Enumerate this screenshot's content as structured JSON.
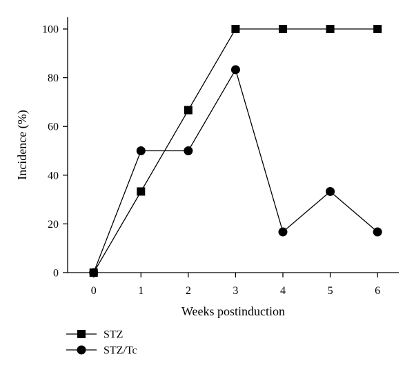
{
  "chart_data": {
    "type": "line",
    "title": "",
    "xlabel": "Weeks postinduction",
    "ylabel": "Incidence (%)",
    "x": [
      0,
      1,
      2,
      3,
      4,
      5,
      6
    ],
    "xlim": [
      -0.55,
      6.45
    ],
    "ylim": [
      0,
      100
    ],
    "x_ticks": [
      "0",
      "1",
      "2",
      "3",
      "4",
      "5",
      "6"
    ],
    "y_ticks": [
      "0",
      "20",
      "40",
      "60",
      "80",
      "100"
    ],
    "grid": false,
    "legend_position": "bottom-left",
    "series": [
      {
        "name": "STZ",
        "marker": "square",
        "color": "#000000",
        "values": [
          0,
          33.3,
          66.7,
          100,
          100,
          100,
          100
        ]
      },
      {
        "name": "STZ/Tc",
        "marker": "circle",
        "color": "#000000",
        "values": [
          0,
          50,
          50,
          83.3,
          16.7,
          33.3,
          16.7
        ]
      }
    ]
  }
}
